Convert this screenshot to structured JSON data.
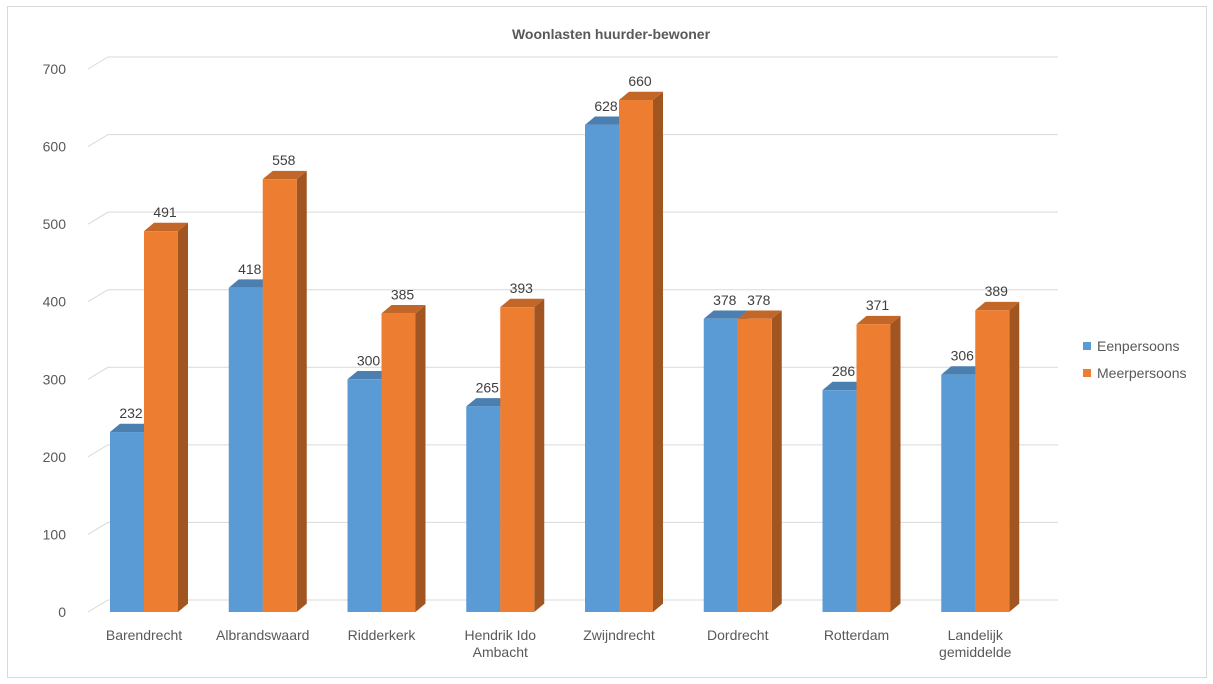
{
  "chart_data": {
    "type": "bar",
    "title": "Woonlasten huurder-bewoner",
    "categories": [
      "Barendrecht",
      "Albrandswaard",
      "Ridderkerk",
      "Hendrik Ido Ambacht",
      "Zwijndrecht",
      "Dordrecht",
      "Rotterdam",
      "Landelijk gemiddelde"
    ],
    "series": [
      {
        "name": "Eenpersoons",
        "color": "#5b9bd5",
        "values": [
          232,
          418,
          300,
          265,
          628,
          378,
          286,
          306
        ]
      },
      {
        "name": "Meerpersoons",
        "color": "#ed7d31",
        "values": [
          491,
          558,
          385,
          393,
          660,
          378,
          371,
          389
        ]
      }
    ],
    "yticks": [
      "0",
      "100",
      "200",
      "300",
      "400",
      "500",
      "600",
      "700"
    ],
    "ylim": [
      0,
      700
    ],
    "grid": true,
    "legend": "right",
    "style": "3d-clustered-column"
  }
}
